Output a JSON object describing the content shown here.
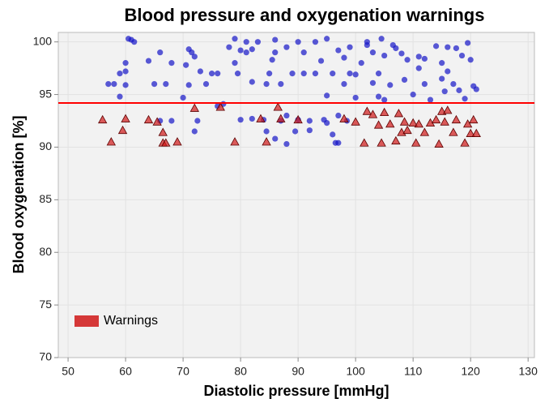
{
  "chart_data": {
    "type": "scatter",
    "title": "Blood pressure and oxygenation warnings",
    "x_label": "Diastolic pressure [mmHg]",
    "y_label": "Blood oxygenation [%]",
    "xlim": [
      48.3,
      131.1
    ],
    "ylim": [
      70,
      100.9
    ],
    "xticks": [
      50,
      60,
      70,
      80,
      90,
      100,
      110,
      120,
      130
    ],
    "yticks": [
      70,
      75,
      80,
      85,
      90,
      95,
      100
    ],
    "grid": true,
    "legend": "lower left",
    "threshold": 94.2,
    "threshold_color": "#ff0000",
    "series": [
      {
        "color": "#1515c8",
        "marker": "circle",
        "x": [
          57,
          58,
          59,
          59,
          60,
          60,
          60,
          60.5,
          61,
          61.5,
          64,
          65,
          66,
          67,
          68,
          70,
          70.5,
          71,
          71,
          71.5,
          72,
          72,
          72.5,
          73,
          74,
          75,
          76,
          77,
          78,
          79,
          79,
          79.5,
          80,
          80,
          81,
          81,
          82,
          82,
          83,
          84,
          84.5,
          84.5,
          85,
          85.5,
          86,
          86,
          87,
          87,
          88,
          88,
          89,
          89.5,
          90,
          90,
          91,
          91,
          92,
          93,
          93,
          94,
          94.5,
          95,
          95,
          96,
          96,
          96.5,
          97,
          97,
          98,
          98,
          98.5,
          99,
          99,
          100,
          100,
          101,
          102,
          102,
          103,
          103,
          104,
          104,
          104.5,
          105,
          105,
          106,
          106.5,
          107,
          108,
          108.5,
          109,
          110,
          111,
          111,
          112,
          112,
          113,
          114,
          115,
          115,
          115.5,
          116,
          116,
          117,
          117.5,
          118,
          118.5,
          119,
          119.5,
          120,
          120.5,
          121,
          66,
          68,
          86,
          88,
          92,
          95,
          97,
          76,
          82
        ],
        "values": [
          96,
          96,
          97,
          94.8,
          97.2,
          98,
          95.9,
          100.3,
          100.2,
          100,
          98.2,
          96,
          99,
          96,
          98,
          94.7,
          97.8,
          95.9,
          99.3,
          99,
          98.6,
          91.5,
          92.5,
          97.2,
          96,
          97,
          97,
          94.1,
          99.5,
          98,
          100.3,
          97,
          99.2,
          92.6,
          99,
          100,
          99.3,
          96.2,
          100,
          92.6,
          96,
          91.5,
          97,
          98.3,
          100.2,
          99,
          96,
          92.5,
          99.5,
          93,
          97,
          91.5,
          100,
          92.6,
          97,
          99,
          92.5,
          100,
          97,
          98.2,
          92.6,
          94.9,
          100.3,
          97,
          91.2,
          90.4,
          99.2,
          93,
          98.5,
          96,
          92.5,
          99.5,
          97,
          96.9,
          94.7,
          98,
          99.7,
          100,
          96.1,
          99,
          97,
          94.8,
          100.3,
          98.7,
          94.5,
          95.9,
          99.7,
          99.4,
          98.9,
          96.4,
          98.3,
          95,
          98.6,
          97.5,
          96,
          98.4,
          94.5,
          99.6,
          98,
          96.5,
          95.3,
          99.5,
          97.2,
          96,
          99.4,
          95.4,
          98.7,
          94.6,
          99.9,
          98.3,
          95.8,
          95.5,
          92.5,
          92.5,
          90.8,
          90.3,
          91.6,
          92.3,
          90.4,
          93.9,
          92.7
        ]
      },
      {
        "name": "Warnings",
        "color": "#d01818",
        "marker": "triangle",
        "x": [
          56,
          57.5,
          59.5,
          60,
          64,
          65.5,
          66.5,
          66.5,
          67,
          69,
          72,
          76.5,
          79,
          83.5,
          84.5,
          86.5,
          87,
          90,
          98,
          101.5,
          102,
          103,
          104,
          104.5,
          105,
          106,
          107,
          107.5,
          108,
          108.5,
          109,
          110,
          110.5,
          111,
          112,
          113,
          114,
          114.5,
          115,
          115.5,
          116,
          117,
          117.5,
          119,
          119.5,
          120,
          120.5,
          121,
          100
        ],
        "values": [
          92.6,
          90.5,
          91.6,
          92.7,
          92.6,
          92.4,
          91.4,
          90.4,
          90.4,
          90.5,
          93.7,
          93.8,
          90.5,
          92.7,
          90.5,
          93.8,
          92.7,
          92.6,
          92.7,
          90.4,
          93.4,
          93.1,
          92.1,
          90.4,
          93.3,
          92.2,
          90.6,
          93.2,
          91.4,
          92.4,
          91.6,
          92.3,
          90.4,
          92.2,
          91.4,
          92.3,
          92.6,
          90.3,
          93.4,
          92.4,
          93.5,
          91.4,
          92.6,
          90.4,
          92.2,
          91.3,
          92.6,
          91.3,
          92.4
        ]
      }
    ]
  }
}
